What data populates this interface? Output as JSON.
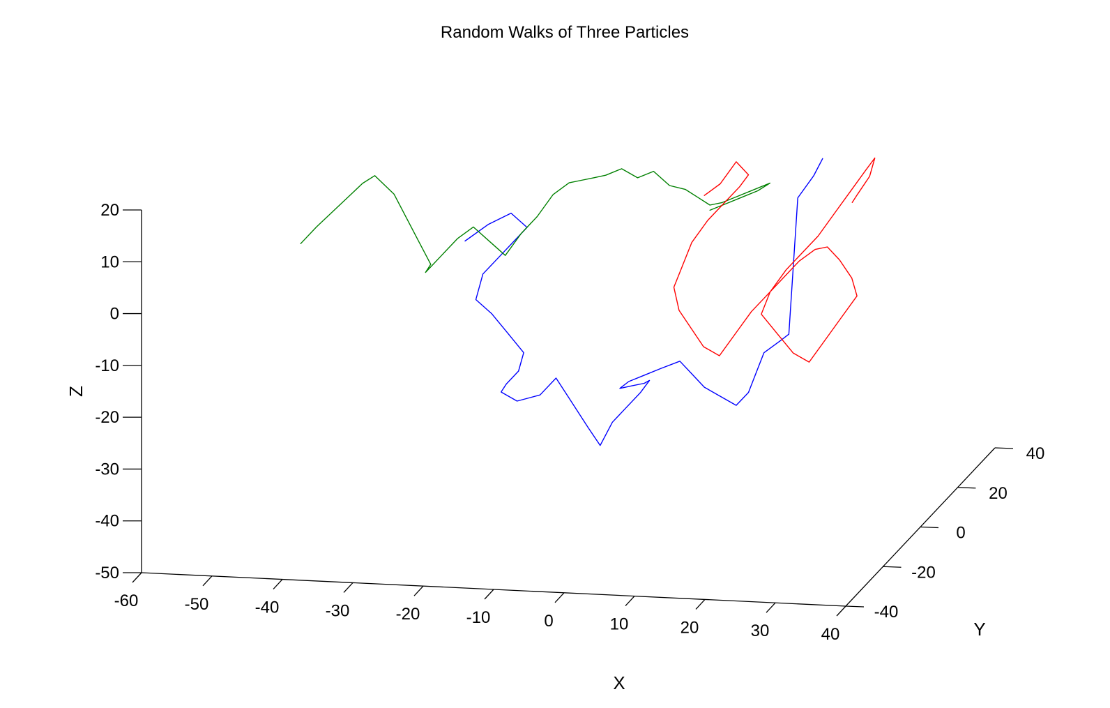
{
  "chart_data": {
    "type": "line",
    "projection": "3d",
    "title": "Random Walks of Three Particles",
    "xlabel": "X",
    "ylabel": "Y",
    "zlabel": "Z",
    "xlim": [
      -60,
      40
    ],
    "ylim": [
      -40,
      40
    ],
    "zlim": [
      -50,
      20
    ],
    "xticks": [
      "-60",
      "-50",
      "-40",
      "-30",
      "-20",
      "-10",
      "0",
      "10",
      "20",
      "30",
      "40"
    ],
    "yticks": [
      "-40",
      "-20",
      "0",
      "20",
      "40"
    ],
    "zticks": [
      "-50",
      "-40",
      "-30",
      "-20",
      "-10",
      "0",
      "10",
      "20"
    ],
    "grid": false,
    "legend": "none",
    "series": [
      {
        "color": "#0000ff",
        "x": [
          -22,
          -19,
          -16,
          -14,
          -16,
          -18,
          -20,
          -21,
          -19,
          -17,
          -15,
          -16,
          -18,
          -19,
          -17,
          -14,
          -12,
          -10,
          -8,
          -6,
          -4,
          -2,
          0,
          1,
          0,
          -2,
          -4,
          -3,
          -1,
          1,
          4,
          6,
          8,
          10,
          12,
          14,
          15,
          16,
          17,
          19,
          20,
          21,
          23,
          24
        ],
        "y": [
          -10,
          -9,
          -8,
          -7,
          -6,
          -7,
          -8,
          -8,
          -7,
          -6,
          -5,
          -4,
          -3,
          -2,
          -1,
          0,
          1,
          2,
          3,
          2,
          1,
          0,
          1,
          2,
          3,
          4,
          5,
          6,
          7,
          8,
          7,
          6,
          5,
          6,
          7,
          6,
          5,
          4,
          3,
          4,
          5,
          6,
          7,
          8
        ],
        "z": [
          5,
          8,
          10,
          7,
          4,
          1,
          -2,
          -7,
          -10,
          -14,
          -18,
          -22,
          -25,
          -27,
          -29,
          -28,
          -25,
          -30,
          -35,
          -38,
          -33,
          -30,
          -27,
          -25,
          -26,
          -27,
          -28,
          -27,
          -26,
          -25,
          -23,
          -25,
          -27,
          -29,
          -31,
          -28,
          -25,
          -22,
          -19,
          -17,
          -16,
          10,
          14,
          17
        ]
      },
      {
        "color": "#008000",
        "x": [
          -48,
          -46,
          -43,
          -40,
          -38,
          -35,
          -33,
          -31,
          -29,
          -30,
          -28,
          -26,
          -24,
          -22,
          -20,
          -18,
          -16,
          -14,
          -12,
          -10,
          -8,
          -6,
          -4,
          -2,
          0,
          2,
          4,
          6,
          8,
          10,
          12,
          14,
          16,
          14,
          12,
          10,
          8
        ],
        "y": [
          0,
          1,
          2,
          3,
          2,
          1,
          0,
          -1,
          -2,
          -1,
          0,
          1,
          2,
          3,
          4,
          5,
          6,
          7,
          8,
          7,
          6,
          5,
          6,
          7,
          8,
          9,
          10,
          9,
          8,
          7,
          8,
          9,
          10,
          11,
          10,
          9,
          8
        ],
        "z": [
          -1,
          2,
          6,
          10,
          12,
          9,
          5,
          1,
          -3,
          -5,
          -2,
          1,
          3,
          0,
          -3,
          1,
          4,
          8,
          10,
          11,
          12,
          13,
          14,
          12,
          13,
          10,
          9,
          8,
          7,
          8,
          9,
          10,
          11,
          9,
          8,
          7,
          6
        ]
      },
      {
        "color": "#ff0000",
        "x": [
          8,
          10,
          12,
          14,
          13,
          11,
          9,
          7,
          6,
          5,
          6,
          8,
          10,
          12,
          14,
          16,
          18,
          20,
          22,
          24,
          26,
          28,
          30,
          31,
          29,
          27,
          25,
          23,
          21,
          19,
          20,
          22,
          24,
          26,
          28,
          30,
          32,
          33,
          32,
          30,
          29
        ],
        "y": [
          5,
          6,
          7,
          6,
          5,
          4,
          3,
          2,
          1,
          0,
          -1,
          -2,
          -3,
          -2,
          -1,
          0,
          1,
          2,
          3,
          4,
          3,
          2,
          1,
          0,
          -1,
          -2,
          -3,
          -4,
          -5,
          -6,
          -5,
          -4,
          -3,
          -2,
          -1,
          0,
          1,
          2,
          3,
          4,
          5
        ],
        "z": [
          10,
          12,
          16,
          14,
          12,
          9,
          6,
          2,
          -2,
          -6,
          -10,
          -13,
          -16,
          -18,
          -14,
          -10,
          -7,
          -4,
          -1,
          1,
          2,
          0,
          -3,
          -6,
          -10,
          -14,
          -18,
          -16,
          -12,
          -8,
          -4,
          0,
          3,
          6,
          10,
          14,
          18,
          20,
          16,
          12,
          10
        ]
      }
    ]
  }
}
